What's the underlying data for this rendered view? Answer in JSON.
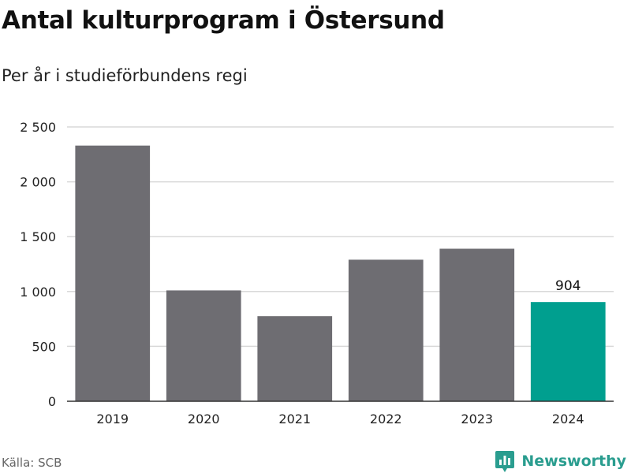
{
  "header": {
    "title": "Antal kulturprogram i Östersund",
    "subtitle": "Per år i studieförbundens regi"
  },
  "footer": {
    "source": "Källa: SCB",
    "brand": "Newsworthy",
    "brand_icon": "bar-chart-icon"
  },
  "colors": {
    "bar": "#6e6d72",
    "highlight": "#009f8f",
    "grid": "#d9d9d9",
    "brand": "#2a9d8f"
  },
  "chart_data": {
    "type": "bar",
    "categories": [
      "2019",
      "2020",
      "2021",
      "2022",
      "2023",
      "2024"
    ],
    "values": [
      2330,
      1010,
      775,
      1290,
      1390,
      904
    ],
    "ylim": [
      0,
      2500
    ],
    "yticks": [
      0,
      500,
      1000,
      1500,
      2000,
      2500
    ],
    "ytick_labels": [
      "0",
      "500",
      "1 000",
      "1 500",
      "2 000",
      "2 500"
    ],
    "highlight_index": 5,
    "data_labels": [
      {
        "index": 5,
        "text": "904"
      }
    ],
    "grid": true,
    "xlabel": "",
    "ylabel": ""
  }
}
